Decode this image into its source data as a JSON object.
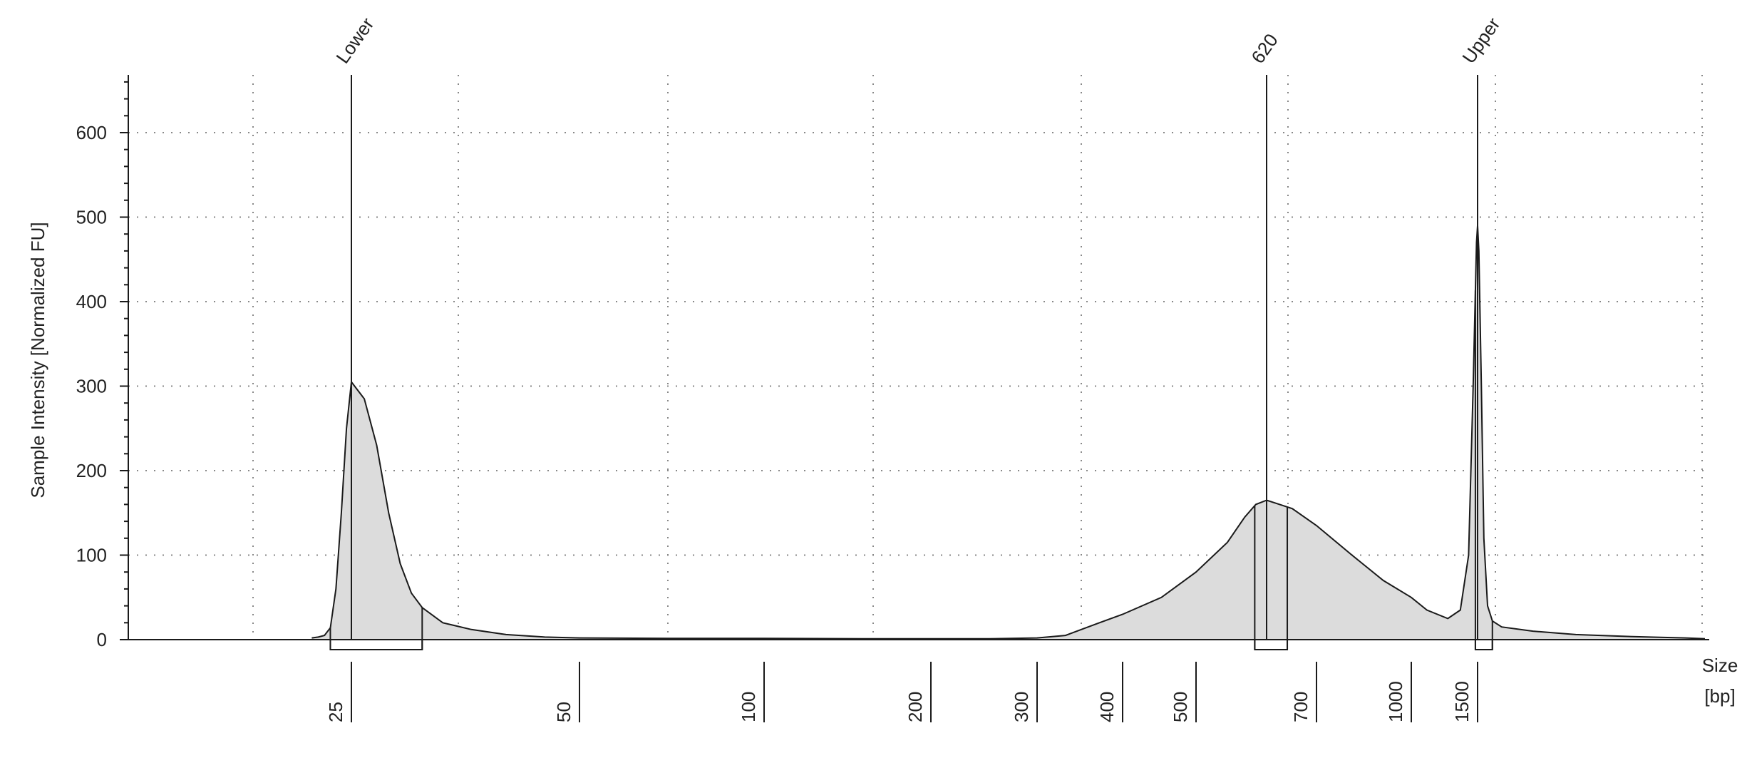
{
  "chart_data": {
    "type": "area",
    "title": "",
    "ylabel": "Sample Intensity [Normalized FU]",
    "xlabel": [
      "Size",
      "[bp]"
    ],
    "ylim": [
      0,
      670
    ],
    "y_ticks": [
      0,
      100,
      200,
      300,
      400,
      500,
      600
    ],
    "x_scale": "ladder (non-linear)",
    "grid": "dotted",
    "ladder_ticks": [
      {
        "label": "25",
        "pos": 25
      },
      {
        "label": "50",
        "pos": 50
      },
      {
        "label": "100",
        "pos": 100
      },
      {
        "label": "200",
        "pos": 200
      },
      {
        "label": "300",
        "pos": 300
      },
      {
        "label": "400",
        "pos": 400
      },
      {
        "label": "500",
        "pos": 500
      },
      {
        "label": "700",
        "pos": 700
      },
      {
        "label": "1000",
        "pos": 1000
      },
      {
        "label": "1500",
        "pos": 1500
      }
    ],
    "peaks": [
      {
        "label": "Lower",
        "size": 25,
        "intensity": 305,
        "region": [
          21,
          31
        ]
      },
      {
        "label": "620",
        "size": 620,
        "intensity": 165,
        "region": [
          598,
          652
        ]
      },
      {
        "label": "Upper",
        "size": 1500,
        "intensity": 490,
        "region": [
          1480,
          1620
        ]
      }
    ],
    "series": [
      {
        "name": "",
        "points": [
          [
            18,
            2
          ],
          [
            19,
            3
          ],
          [
            20,
            5
          ],
          [
            21,
            14
          ],
          [
            22,
            60
          ],
          [
            23,
            150
          ],
          [
            24,
            250
          ],
          [
            25,
            305
          ],
          [
            26,
            285
          ],
          [
            27,
            230
          ],
          [
            28,
            150
          ],
          [
            29,
            90
          ],
          [
            30,
            55
          ],
          [
            31,
            38
          ],
          [
            33,
            20
          ],
          [
            36,
            12
          ],
          [
            40,
            6
          ],
          [
            45,
            3
          ],
          [
            50,
            2
          ],
          [
            70,
            1.5
          ],
          [
            100,
            1.5
          ],
          [
            150,
            1
          ],
          [
            200,
            1
          ],
          [
            250,
            1
          ],
          [
            300,
            2
          ],
          [
            330,
            5
          ],
          [
            370,
            20
          ],
          [
            400,
            30
          ],
          [
            450,
            50
          ],
          [
            500,
            80
          ],
          [
            550,
            115
          ],
          [
            580,
            145
          ],
          [
            600,
            160
          ],
          [
            620,
            165
          ],
          [
            640,
            160
          ],
          [
            660,
            155
          ],
          [
            700,
            135
          ],
          [
            800,
            100
          ],
          [
            900,
            70
          ],
          [
            1000,
            50
          ],
          [
            1100,
            35
          ],
          [
            1250,
            25
          ],
          [
            1350,
            35
          ],
          [
            1420,
            100
          ],
          [
            1460,
            300
          ],
          [
            1490,
            470
          ],
          [
            1500,
            490
          ],
          [
            1510,
            460
          ],
          [
            1530,
            300
          ],
          [
            1550,
            120
          ],
          [
            1580,
            40
          ],
          [
            1620,
            22
          ],
          [
            1700,
            15
          ],
          [
            2000,
            10
          ],
          [
            2500,
            6
          ],
          [
            3500,
            4
          ],
          [
            5000,
            3
          ],
          [
            8000,
            2
          ],
          [
            10380,
            1
          ]
        ]
      }
    ]
  }
}
